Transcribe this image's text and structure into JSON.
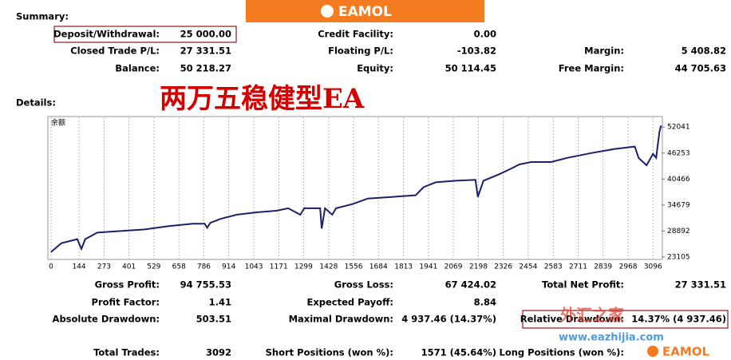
{
  "brand": "EAMOL",
  "headline": "两万五稳健型EA",
  "watermark": {
    "title": "外汇之家",
    "url": "www.eazhijia.com"
  },
  "summary": {
    "heading": "Summary:",
    "rows": [
      [
        {
          "label": "Deposit/Withdrawal:",
          "value": "25 000.00"
        },
        {
          "label": "Credit Facility:",
          "value": "0.00"
        }
      ],
      [
        {
          "label": "Closed Trade P/L:",
          "value": "27 331.51"
        },
        {
          "label": "Floating P/L:",
          "value": "-103.82"
        },
        {
          "label": "Margin:",
          "value": "5 408.82"
        }
      ],
      [
        {
          "label": "Balance:",
          "value": "50 218.27"
        },
        {
          "label": "Equity:",
          "value": "50 114.45"
        },
        {
          "label": "Free Margin:",
          "value": "44 705.63"
        }
      ]
    ]
  },
  "details": {
    "heading": "Details:",
    "rows": [
      [
        {
          "label": "Gross Profit:",
          "value": "94 755.53"
        },
        {
          "label": "Gross Loss:",
          "value": "67 424.02"
        },
        {
          "label": "Total Net Profit:",
          "value": "27 331.51"
        }
      ],
      [
        {
          "label": "Profit Factor:",
          "value": "1.41"
        },
        {
          "label": "Expected Payoff:",
          "value": "8.84"
        }
      ],
      [
        {
          "label": "Absolute Drawdown:",
          "value": "503.51"
        },
        {
          "label": "Maximal Drawdown:",
          "value": "4 937.46 (14.37%)"
        },
        {
          "label": "Relative Drawdown:",
          "value": "14.37% (4 937.46)"
        }
      ],
      [
        {
          "label": "Total Trades:",
          "value": "3092"
        },
        {
          "label": "Short Positions (won %):",
          "value": "1571 (45.64%)"
        },
        {
          "label": "Long Positions (won %):"
        }
      ]
    ]
  },
  "chart_data": {
    "type": "line",
    "title": "余额",
    "x": [
      0,
      53,
      135,
      156,
      176,
      238,
      360,
      483,
      606,
      729,
      790,
      803,
      819,
      872,
      954,
      1057,
      1159,
      1220,
      1282,
      1302,
      1384,
      1392,
      1409,
      1446,
      1466,
      1548,
      1630,
      1753,
      1875,
      1916,
      1978,
      2081,
      2183,
      2195,
      2224,
      2306,
      2367,
      2408,
      2469,
      2572,
      2654,
      2777,
      2899,
      3002,
      3022,
      3063,
      3096,
      3112,
      3129,
      3137
    ],
    "series": [
      {
        "name": "Balance",
        "color": "#1c1f6b",
        "values": [
          24190,
          26180,
          27080,
          24910,
          27080,
          28530,
          28890,
          29250,
          29980,
          30520,
          30520,
          29620,
          30700,
          31600,
          32510,
          33050,
          33410,
          33960,
          32510,
          33960,
          33960,
          29440,
          33960,
          32510,
          33960,
          34860,
          36130,
          36490,
          36850,
          38660,
          39740,
          40100,
          40290,
          36490,
          40100,
          41550,
          42820,
          43720,
          44260,
          44260,
          45170,
          46250,
          47160,
          47700,
          45170,
          43540,
          46070,
          45170,
          50960,
          52400
        ]
      }
    ],
    "xlim": [
      -8,
      3140
    ],
    "ylim": [
      22560,
      54210
    ],
    "xticks": [
      0,
      144,
      273,
      401,
      529,
      658,
      786,
      914,
      1043,
      1171,
      1299,
      1428,
      1556,
      1684,
      1813,
      1941,
      2069,
      2198,
      2326,
      2454,
      2583,
      2711,
      2839,
      2968,
      3096
    ],
    "yticks": [
      23105,
      28892,
      34679,
      40466,
      46253,
      52041
    ],
    "grid": true
  }
}
